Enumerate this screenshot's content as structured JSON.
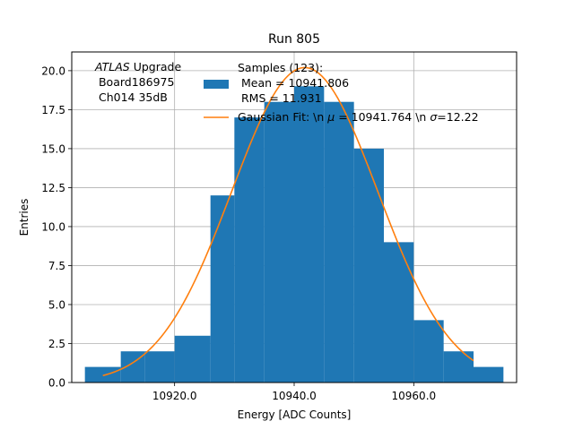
{
  "chart_data": {
    "type": "bar",
    "title": "Run 805",
    "xlabel": "Energy [ADC Counts]",
    "ylabel": "Entries",
    "xlim": [
      10902.8,
      10977.2
    ],
    "ylim": [
      0,
      21.2
    ],
    "grid": true,
    "x_ticks": [
      10920.0,
      10940.0,
      10960.0
    ],
    "x_tick_labels": [
      "10920.0",
      "10940.0",
      "10960.0"
    ],
    "y_ticks": [
      0,
      2.5,
      5,
      7.5,
      10,
      12.5,
      15,
      17.5,
      20
    ],
    "y_tick_labels": [
      "0.0",
      "2.5",
      "5.0",
      "7.5",
      "10.0",
      "12.5",
      "15.0",
      "17.5",
      "20.0"
    ],
    "histogram": {
      "name_lines": [
        "Samples (123):",
        " Mean = 10941.806",
        " RMS = 11.931"
      ],
      "color": "#1f77b4",
      "bins": [
        {
          "x0": 10905,
          "x1": 10911,
          "count": 1
        },
        {
          "x0": 10911,
          "x1": 10915,
          "count": 2
        },
        {
          "x0": 10915,
          "x1": 10920,
          "count": 2
        },
        {
          "x0": 10920,
          "x1": 10926,
          "count": 3
        },
        {
          "x0": 10926,
          "x1": 10930,
          "count": 12
        },
        {
          "x0": 10930,
          "x1": 10935,
          "count": 17
        },
        {
          "x0": 10935,
          "x1": 10940,
          "count": 18
        },
        {
          "x0": 10940,
          "x1": 10945,
          "count": 19
        },
        {
          "x0": 10945,
          "x1": 10950,
          "count": 18
        },
        {
          "x0": 10950,
          "x1": 10955,
          "count": 15
        },
        {
          "x0": 10955,
          "x1": 10960,
          "count": 9
        },
        {
          "x0": 10960,
          "x1": 10965,
          "count": 4
        },
        {
          "x0": 10965,
          "x1": 10970,
          "count": 2
        },
        {
          "x0": 10970,
          "x1": 10975,
          "count": 1
        }
      ]
    },
    "fit": {
      "name": "Gaussian Fit: \\n $\\mu$ = 10941.764 \\n $\\sigma$=12.22",
      "label_prefix": "Gaussian Fit: \\n ",
      "label_mu": "μ",
      "label_middle": " = 10941.764 \\n ",
      "label_sigma": "σ",
      "label_suffix": "=12.22",
      "color": "#ff7f0e",
      "amplitude": 20.2,
      "mu": 10941.764,
      "sigma": 12.22,
      "x_range": [
        10908,
        10970
      ]
    },
    "annotation": {
      "line1_italic": "ATLAS",
      "line1_rest": " Upgrade",
      "line2": " Board186975",
      "line3": " Ch014 35dB"
    },
    "legend_position": "top-center"
  }
}
